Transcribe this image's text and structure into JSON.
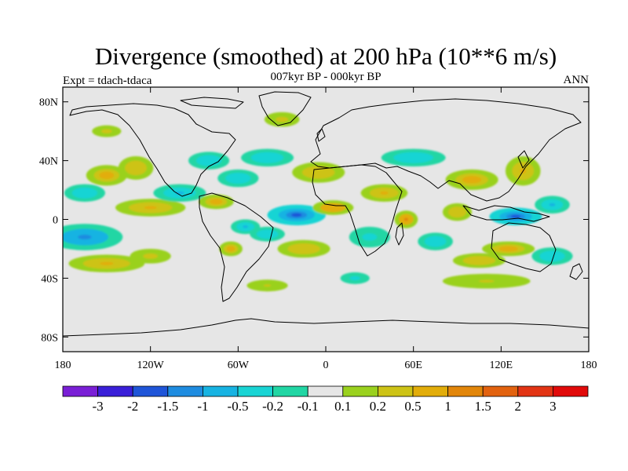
{
  "chart_data": {
    "type": "heatmap",
    "title": "Divergence (smoothed) at 200 hPa (10**6 m/s)",
    "left_label": "Expt = tdach-tdaca",
    "center_label": "007kyr BP - 000kyr BP",
    "right_label": "ANN",
    "x_range": [
      -180,
      180
    ],
    "y_range": [
      -90,
      90
    ],
    "x_ticks": [
      {
        "value": -180,
        "label": "180"
      },
      {
        "value": -120,
        "label": "120W"
      },
      {
        "value": -60,
        "label": "60W"
      },
      {
        "value": 0,
        "label": "0"
      },
      {
        "value": 60,
        "label": "60E"
      },
      {
        "value": 120,
        "label": "120E"
      },
      {
        "value": 180,
        "label": "180"
      }
    ],
    "y_ticks": [
      {
        "value": 80,
        "label": "80N"
      },
      {
        "value": 40,
        "label": "40N"
      },
      {
        "value": 0,
        "label": "0"
      },
      {
        "value": -40,
        "label": "40S"
      },
      {
        "value": -80,
        "label": "80S"
      }
    ],
    "contour_levels": [
      -3,
      -2,
      -1.5,
      -1,
      -0.5,
      -0.2,
      -0.1,
      0.1,
      0.2,
      0.5,
      1,
      1.5,
      2,
      3
    ],
    "level_labels": [
      "-3",
      "-2",
      "-1.5",
      "-1",
      "-0.5",
      "-0.2",
      "-0.1",
      "0.1",
      "0.2",
      "0.5",
      "1",
      "1.5",
      "2",
      "3"
    ],
    "colors": [
      "#7a1fd6",
      "#3a1fd8",
      "#1f55d8",
      "#1e8ce0",
      "#17b3e2",
      "#19d4d4",
      "#21d6a4",
      "#e6e6e6",
      "#9ad11e",
      "#cdc316",
      "#e2ad0a",
      "#e2860a",
      "#e2620f",
      "#e23414",
      "#e10a0a"
    ],
    "anomaly_regions": [
      {
        "lon": -165,
        "lat": -12,
        "a": 26,
        "b": 9,
        "value": -1.2
      },
      {
        "lon": -150,
        "lat": 30,
        "a": 14,
        "b": 7,
        "value": 0.8
      },
      {
        "lon": -165,
        "lat": 18,
        "a": 14,
        "b": 6,
        "value": -0.4
      },
      {
        "lon": -120,
        "lat": 8,
        "a": 24,
        "b": 6,
        "value": 0.6
      },
      {
        "lon": -130,
        "lat": 35,
        "a": 12,
        "b": 8,
        "value": 0.5
      },
      {
        "lon": -100,
        "lat": 18,
        "a": 18,
        "b": 6,
        "value": -0.6
      },
      {
        "lon": -150,
        "lat": -30,
        "a": 26,
        "b": 6,
        "value": 0.6
      },
      {
        "lon": -120,
        "lat": -25,
        "a": 14,
        "b": 5,
        "value": 0.3
      },
      {
        "lon": -75,
        "lat": 12,
        "a": 12,
        "b": 5,
        "value": 0.7
      },
      {
        "lon": -80,
        "lat": 40,
        "a": 14,
        "b": 6,
        "value": -0.5
      },
      {
        "lon": -60,
        "lat": 28,
        "a": 14,
        "b": 6,
        "value": -0.4
      },
      {
        "lon": -55,
        "lat": -5,
        "a": 10,
        "b": 5,
        "value": -0.6
      },
      {
        "lon": -65,
        "lat": -20,
        "a": 8,
        "b": 5,
        "value": 0.8
      },
      {
        "lon": -40,
        "lat": -10,
        "a": 12,
        "b": 5,
        "value": -0.5
      },
      {
        "lon": -20,
        "lat": 3,
        "a": 20,
        "b": 7,
        "value": -1.6
      },
      {
        "lon": 5,
        "lat": 8,
        "a": 14,
        "b": 5,
        "value": 1.0
      },
      {
        "lon": -15,
        "lat": -20,
        "a": 18,
        "b": 6,
        "value": 0.4
      },
      {
        "lon": -40,
        "lat": 42,
        "a": 18,
        "b": 6,
        "value": -0.4
      },
      {
        "lon": -5,
        "lat": 32,
        "a": 18,
        "b": 7,
        "value": 0.5
      },
      {
        "lon": 40,
        "lat": 18,
        "a": 16,
        "b": 6,
        "value": 0.6
      },
      {
        "lon": 60,
        "lat": 42,
        "a": 22,
        "b": 6,
        "value": -0.4
      },
      {
        "lon": 30,
        "lat": -12,
        "a": 14,
        "b": 7,
        "value": -0.3
      },
      {
        "lon": 55,
        "lat": 0,
        "a": 8,
        "b": 6,
        "value": 1.2
      },
      {
        "lon": 75,
        "lat": -15,
        "a": 12,
        "b": 6,
        "value": -0.4
      },
      {
        "lon": 100,
        "lat": 27,
        "a": 18,
        "b": 7,
        "value": 0.9
      },
      {
        "lon": 135,
        "lat": 33,
        "a": 12,
        "b": 10,
        "value": 0.6
      },
      {
        "lon": 90,
        "lat": 5,
        "a": 10,
        "b": 6,
        "value": 0.4
      },
      {
        "lon": 130,
        "lat": 2,
        "a": 18,
        "b": 6,
        "value": -1.8
      },
      {
        "lon": 155,
        "lat": 10,
        "a": 12,
        "b": 6,
        "value": -0.6
      },
      {
        "lon": 125,
        "lat": -20,
        "a": 18,
        "b": 5,
        "value": 0.8
      },
      {
        "lon": 105,
        "lat": -28,
        "a": 18,
        "b": 5,
        "value": 0.4
      },
      {
        "lon": 155,
        "lat": -25,
        "a": 14,
        "b": 6,
        "value": -0.4
      },
      {
        "lon": 110,
        "lat": -42,
        "a": 30,
        "b": 5,
        "value": 0.25
      },
      {
        "lon": -40,
        "lat": -45,
        "a": 14,
        "b": 4,
        "value": 0.25
      },
      {
        "lon": 20,
        "lat": -40,
        "a": 10,
        "b": 4,
        "value": -0.3
      },
      {
        "lon": -30,
        "lat": 68,
        "a": 12,
        "b": 5,
        "value": 0.3
      },
      {
        "lon": -150,
        "lat": 60,
        "a": 10,
        "b": 4,
        "value": 0.3
      }
    ]
  }
}
